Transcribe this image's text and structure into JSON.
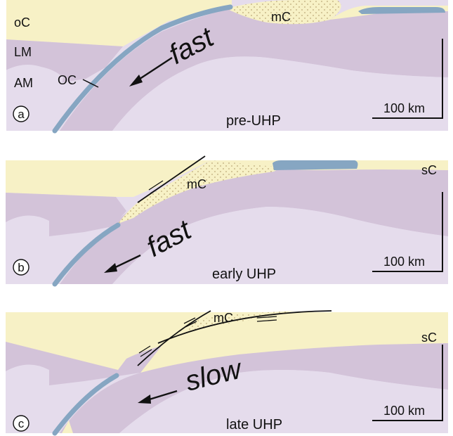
{
  "colors": {
    "continental_crust": "#f7f1c6",
    "lithospheric_mantle": "#d3c3d9",
    "asthenospheric_mantle": "#e5dcec",
    "oceanic_crust": "#86a6c2",
    "micro_continent": "#f7f1c6",
    "dots": "#c9b98a"
  },
  "panel_a": {
    "badge": "a",
    "stage": "pre-UHP",
    "speed": "fast",
    "scale_label": "100 km",
    "mc_label": "mC",
    "oc_upper_label": "oC",
    "lm_label": "LM",
    "am_label": "AM",
    "oceanic_label": "OC"
  },
  "panel_b": {
    "badge": "b",
    "stage": "early UHP",
    "speed": "fast",
    "scale_label": "100 km",
    "mc_label": "mC",
    "sc_label": "sC"
  },
  "panel_c": {
    "badge": "c",
    "stage": "late UHP",
    "speed": "slow",
    "scale_label": "100 km",
    "mc_label": "mC",
    "sc_label": "sC"
  }
}
